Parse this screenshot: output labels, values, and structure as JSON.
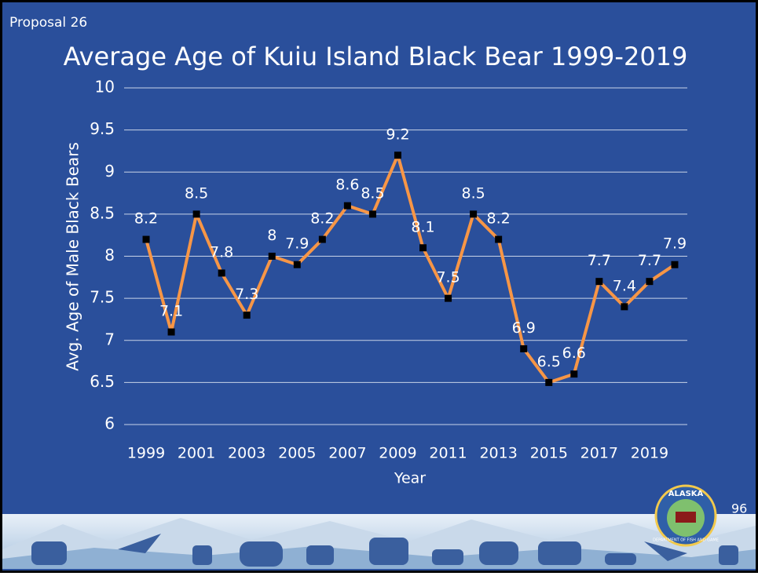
{
  "header": {
    "tag": "Proposal 26",
    "page_number": "96"
  },
  "logo": {
    "top_text": "ALASKA",
    "bottom_text": "DEPARTMENT OF FISH AND GAME"
  },
  "chart_data": {
    "type": "line",
    "title": "Average Age of Kuiu Island Black Bear 1999-2019",
    "x_label": "Year",
    "y_label": "Avg. Age of Male Black Bears",
    "categories": [
      "1999",
      null,
      "2001",
      null,
      "2003",
      null,
      "2005",
      null,
      "2007",
      null,
      "2009",
      null,
      "2011",
      null,
      "2013",
      null,
      "2015",
      null,
      "2017",
      null,
      "2019",
      null
    ],
    "series": [
      {
        "name": "Average Age",
        "color": "#f79646",
        "values": [
          8.2,
          7.1,
          8.5,
          7.8,
          7.3,
          8,
          7.9,
          8.2,
          8.6,
          8.5,
          9.2,
          8.1,
          7.5,
          8.5,
          8.2,
          6.9,
          6.5,
          6.6,
          7.7,
          7.4,
          7.7,
          7.9
        ]
      }
    ],
    "ylim": [
      6,
      10
    ],
    "yticks": [
      6,
      6.5,
      7,
      7.5,
      8,
      8.5,
      9,
      9.5,
      10
    ],
    "grid": true
  }
}
